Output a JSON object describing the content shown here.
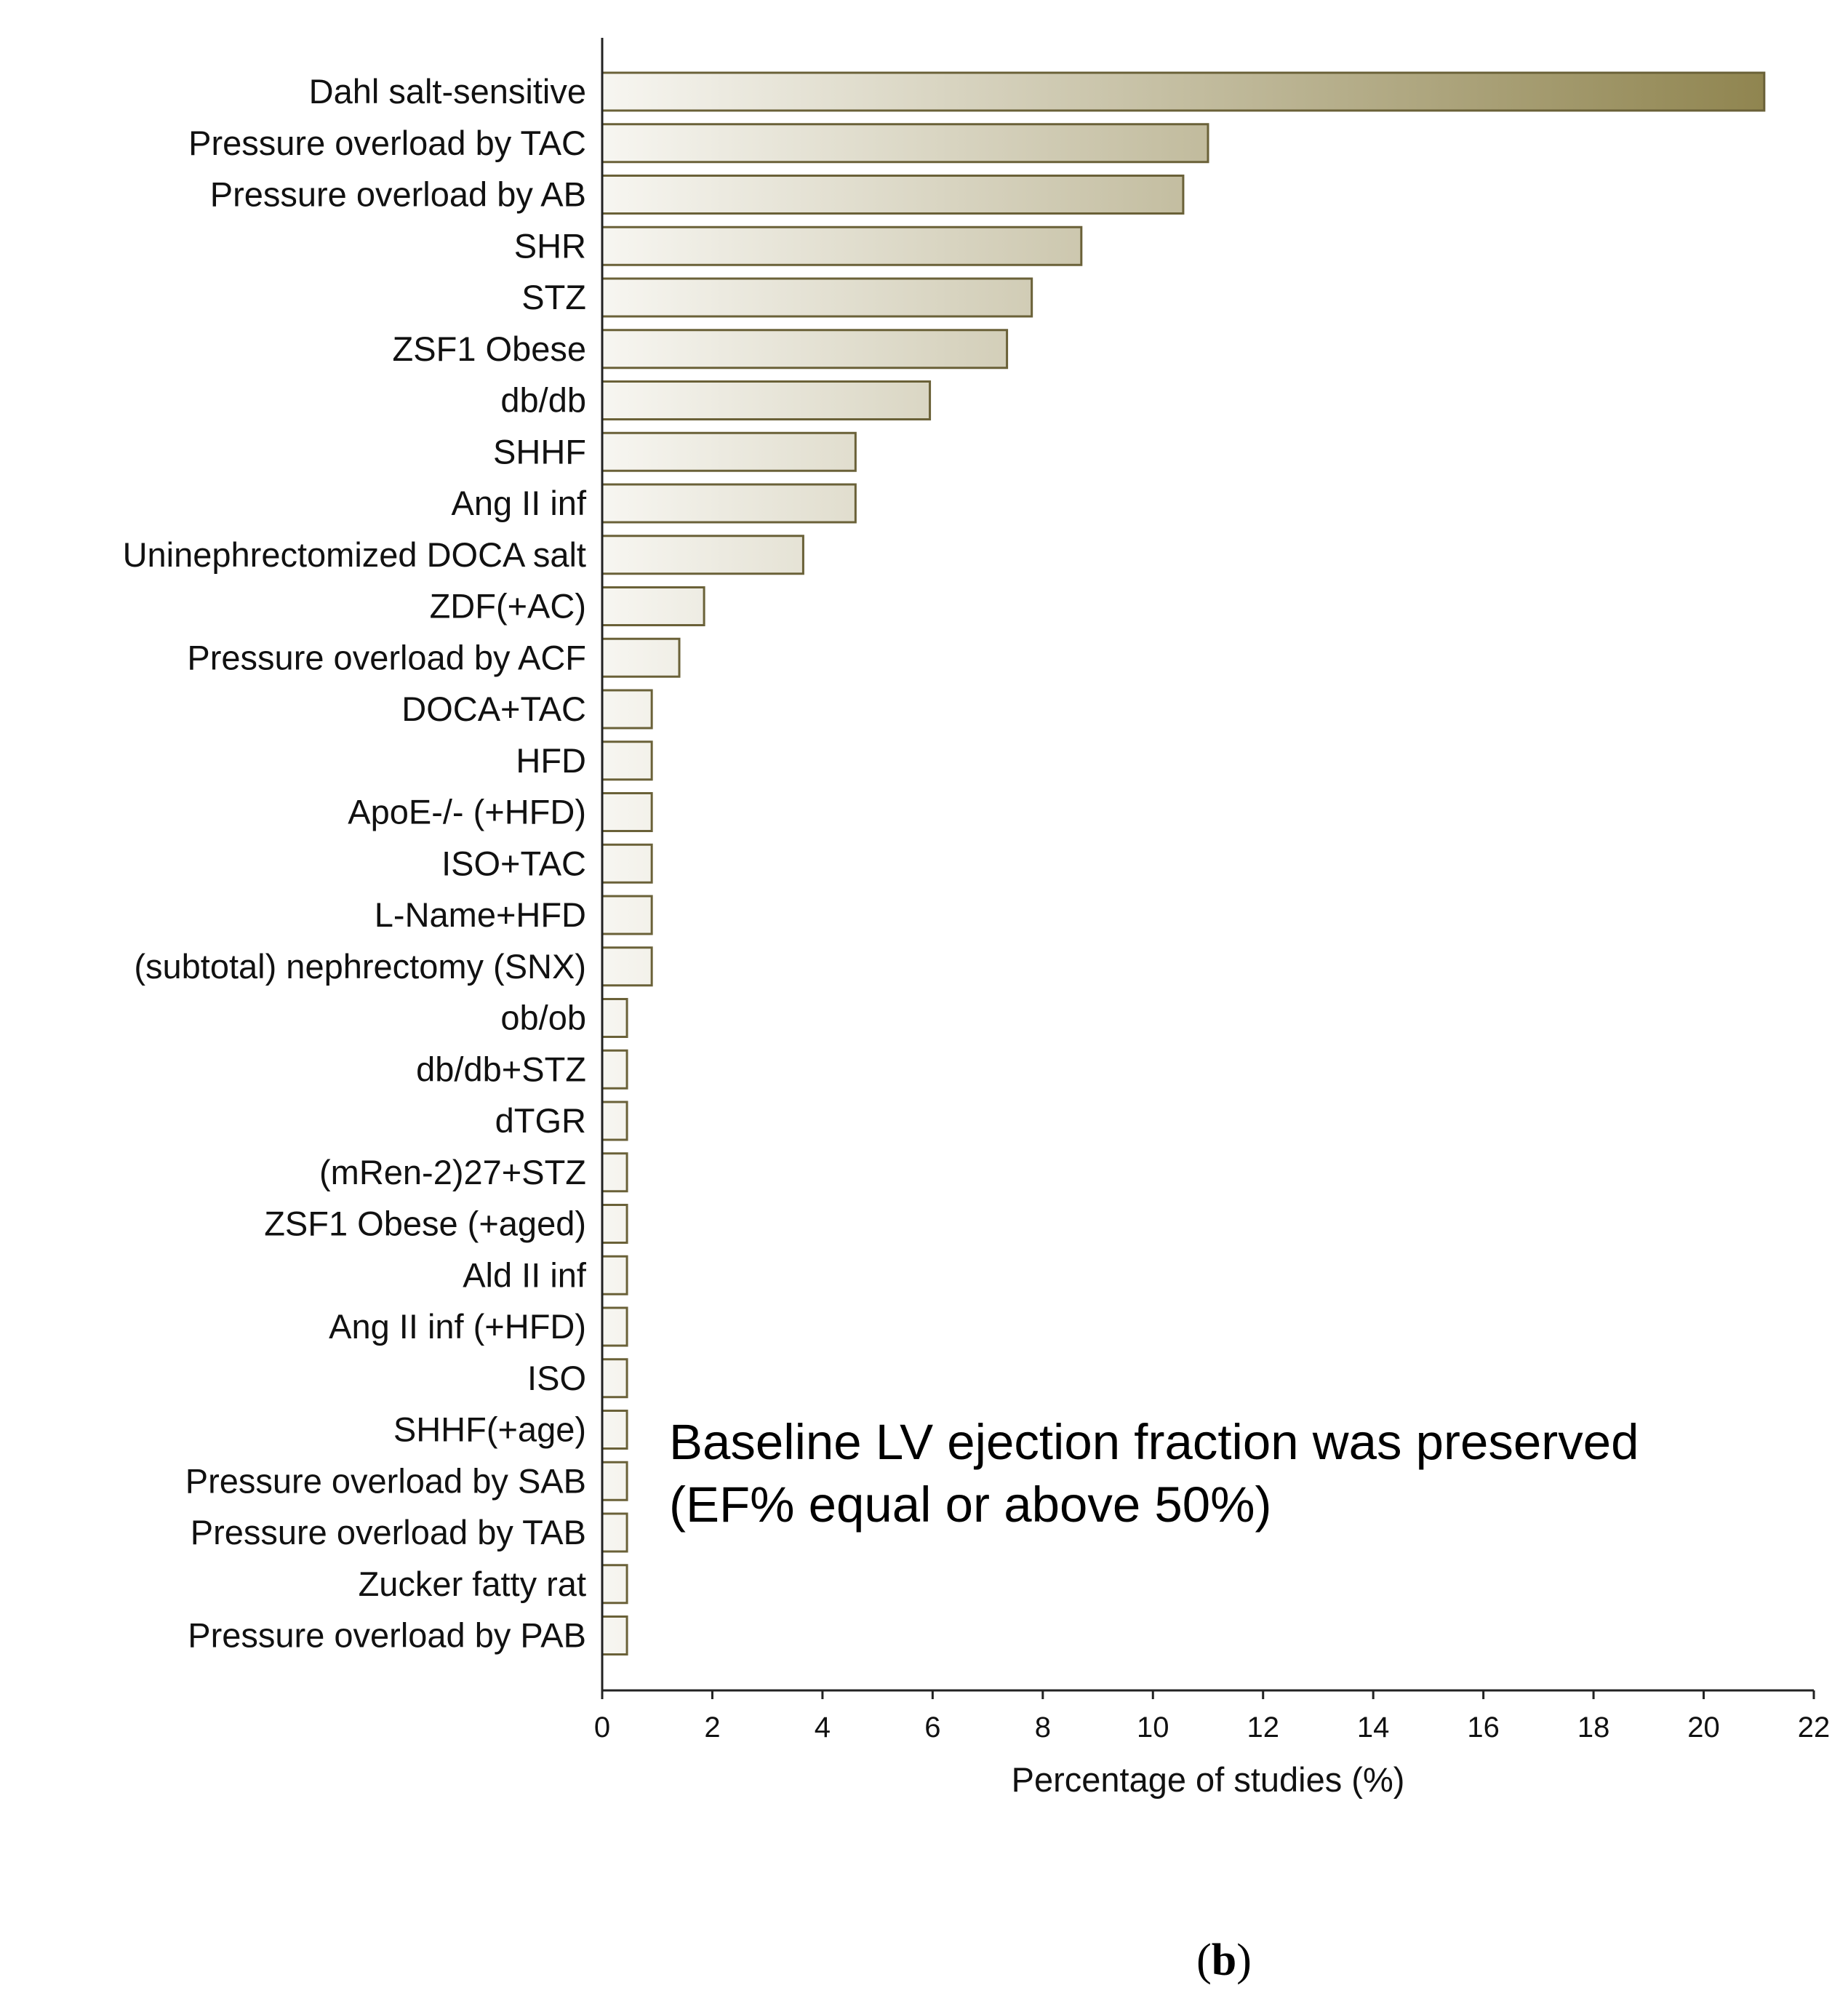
{
  "chart_data": {
    "type": "bar",
    "orientation": "horizontal",
    "categories": [
      "Dahl salt-sensitive",
      "Pressure overload by TAC",
      "Pressure overload by AB",
      "SHR",
      "STZ",
      "ZSF1 Obese",
      "db/db",
      "SHHF",
      "Ang II inf",
      "Uninephrectomized DOCA salt",
      "ZDF(+AC)",
      "Pressure overload by ACF",
      "DOCA+TAC",
      "HFD",
      "ApoE-/- (+HFD)",
      "ISO+TAC",
      "L-Name+HFD",
      "(subtotal) nephrectomy (SNX)",
      "ob/ob",
      "db/db+STZ",
      "dTGR",
      "(mRen-2)27+STZ",
      "ZSF1 Obese (+aged)",
      "Ald II inf",
      "Ang II inf (+HFD)",
      "ISO",
      "SHHF(+age)",
      "Pressure overload by SAB",
      "Pressure overload by TAB",
      "Zucker fatty rat",
      "Pressure overload by PAB"
    ],
    "values": [
      21.1,
      11.0,
      10.55,
      8.7,
      7.8,
      7.35,
      5.95,
      4.6,
      4.6,
      3.65,
      1.85,
      1.4,
      0.9,
      0.9,
      0.9,
      0.9,
      0.9,
      0.9,
      0.45,
      0.45,
      0.45,
      0.45,
      0.45,
      0.45,
      0.45,
      0.45,
      0.45,
      0.45,
      0.45,
      0.45,
      0.45
    ],
    "xlabel": "Percentage of studies (%)",
    "ylabel": "",
    "xlim": [
      0,
      22
    ],
    "xticks": [
      0,
      2,
      4,
      6,
      8,
      10,
      12,
      14,
      16,
      18,
      20,
      22
    ],
    "grid": false,
    "annotation": [
      "Baseline LV ejection fraction was preserved",
      "(EF% equal or above 50%)"
    ],
    "panel_label": [
      "(",
      "b",
      ")"
    ],
    "colors": {
      "bar_fill_start": "#f7f6f1",
      "bar_fill_end": "#908550",
      "bar_stroke": "#6a6138",
      "axis": "#222222"
    }
  }
}
